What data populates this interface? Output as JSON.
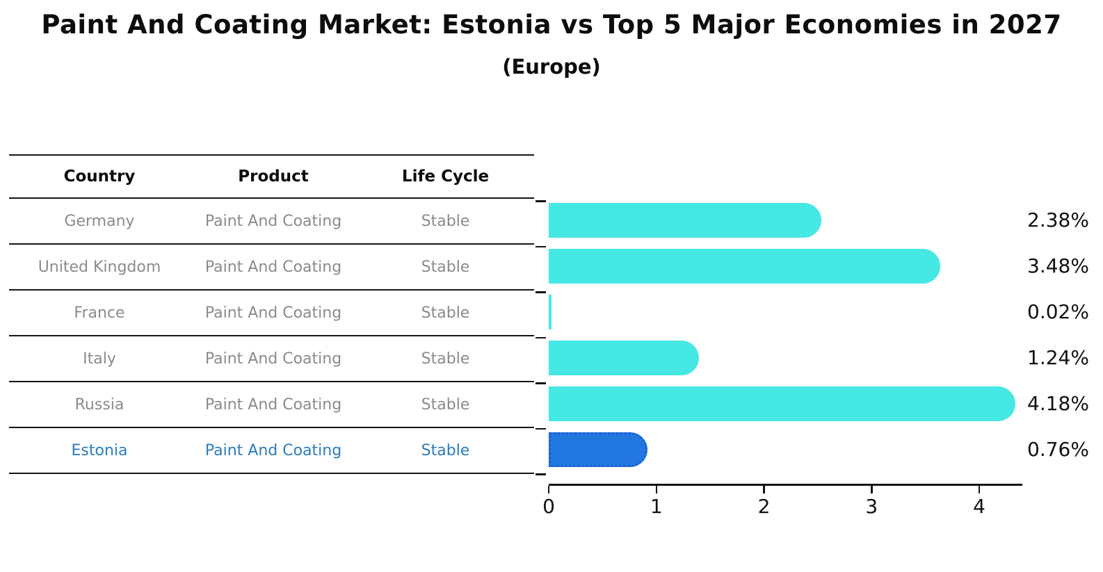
{
  "title": "Paint And Coating Market: Estonia vs Top 5 Major Economies in 2027",
  "subtitle": "(Europe)",
  "table": {
    "headers": [
      "Country",
      "Product",
      "Life Cycle"
    ],
    "rows": [
      {
        "country": "Germany",
        "product": "Paint And Coating",
        "life_cycle": "Stable",
        "highlight": false
      },
      {
        "country": "United Kingdom",
        "product": "Paint And Coating",
        "life_cycle": "Stable",
        "highlight": false
      },
      {
        "country": "France",
        "product": "Paint And Coating",
        "life_cycle": "Stable",
        "highlight": false
      },
      {
        "country": "Italy",
        "product": "Paint And Coating",
        "life_cycle": "Stable",
        "highlight": false
      },
      {
        "country": "Russia",
        "product": "Paint And Coating",
        "life_cycle": "Stable",
        "highlight": false
      },
      {
        "country": "Estonia",
        "product": "Paint And Coating",
        "life_cycle": "Stable",
        "highlight": true
      }
    ]
  },
  "chart_data": {
    "type": "bar",
    "orientation": "horizontal",
    "categories": [
      "Germany",
      "United Kingdom",
      "France",
      "Italy",
      "Russia",
      "Estonia"
    ],
    "values": [
      2.38,
      3.48,
      0.02,
      1.24,
      4.18,
      0.76
    ],
    "value_labels": [
      "2.38%",
      "3.48%",
      "0.02%",
      "1.24%",
      "4.18%",
      "0.76%"
    ],
    "x_ticks": [
      0,
      1,
      2,
      3,
      4
    ],
    "xlim": [
      0,
      4.4
    ],
    "grid": false,
    "legend": "none",
    "bar_color": "#46E8E4",
    "highlight_index": 5,
    "highlight_bar_color": "#2277E0",
    "highlight_border_color": "#1A5FD0",
    "highlight_text_color": "#2D7CBD",
    "row_text_color": "#8B8B8B"
  }
}
